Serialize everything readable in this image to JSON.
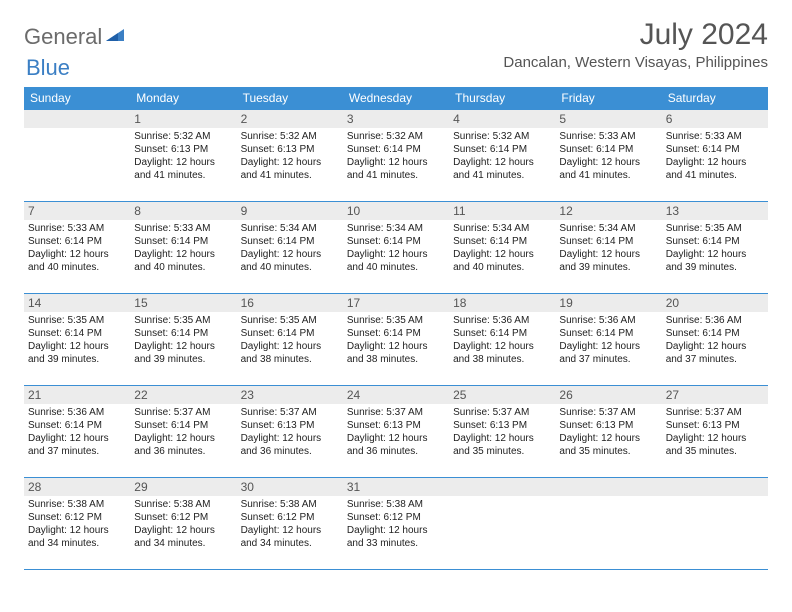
{
  "logo": {
    "text1": "General",
    "text2": "Blue"
  },
  "header": {
    "month": "July 2024",
    "location": "Dancalan, Western Visayas, Philippines"
  },
  "colors": {
    "header_bg": "#3b8fd4",
    "header_text": "#ffffff",
    "daynum_bg": "#ececec",
    "border": "#3b8fd4",
    "logo_gray": "#6b6b6b",
    "logo_blue": "#3b7fc4"
  },
  "weekdays": [
    "Sunday",
    "Monday",
    "Tuesday",
    "Wednesday",
    "Thursday",
    "Friday",
    "Saturday"
  ],
  "weeks": [
    [
      null,
      {
        "n": "1",
        "sr": "Sunrise: 5:32 AM",
        "ss": "Sunset: 6:13 PM",
        "d1": "Daylight: 12 hours",
        "d2": "and 41 minutes."
      },
      {
        "n": "2",
        "sr": "Sunrise: 5:32 AM",
        "ss": "Sunset: 6:13 PM",
        "d1": "Daylight: 12 hours",
        "d2": "and 41 minutes."
      },
      {
        "n": "3",
        "sr": "Sunrise: 5:32 AM",
        "ss": "Sunset: 6:14 PM",
        "d1": "Daylight: 12 hours",
        "d2": "and 41 minutes."
      },
      {
        "n": "4",
        "sr": "Sunrise: 5:32 AM",
        "ss": "Sunset: 6:14 PM",
        "d1": "Daylight: 12 hours",
        "d2": "and 41 minutes."
      },
      {
        "n": "5",
        "sr": "Sunrise: 5:33 AM",
        "ss": "Sunset: 6:14 PM",
        "d1": "Daylight: 12 hours",
        "d2": "and 41 minutes."
      },
      {
        "n": "6",
        "sr": "Sunrise: 5:33 AM",
        "ss": "Sunset: 6:14 PM",
        "d1": "Daylight: 12 hours",
        "d2": "and 41 minutes."
      }
    ],
    [
      {
        "n": "7",
        "sr": "Sunrise: 5:33 AM",
        "ss": "Sunset: 6:14 PM",
        "d1": "Daylight: 12 hours",
        "d2": "and 40 minutes."
      },
      {
        "n": "8",
        "sr": "Sunrise: 5:33 AM",
        "ss": "Sunset: 6:14 PM",
        "d1": "Daylight: 12 hours",
        "d2": "and 40 minutes."
      },
      {
        "n": "9",
        "sr": "Sunrise: 5:34 AM",
        "ss": "Sunset: 6:14 PM",
        "d1": "Daylight: 12 hours",
        "d2": "and 40 minutes."
      },
      {
        "n": "10",
        "sr": "Sunrise: 5:34 AM",
        "ss": "Sunset: 6:14 PM",
        "d1": "Daylight: 12 hours",
        "d2": "and 40 minutes."
      },
      {
        "n": "11",
        "sr": "Sunrise: 5:34 AM",
        "ss": "Sunset: 6:14 PM",
        "d1": "Daylight: 12 hours",
        "d2": "and 40 minutes."
      },
      {
        "n": "12",
        "sr": "Sunrise: 5:34 AM",
        "ss": "Sunset: 6:14 PM",
        "d1": "Daylight: 12 hours",
        "d2": "and 39 minutes."
      },
      {
        "n": "13",
        "sr": "Sunrise: 5:35 AM",
        "ss": "Sunset: 6:14 PM",
        "d1": "Daylight: 12 hours",
        "d2": "and 39 minutes."
      }
    ],
    [
      {
        "n": "14",
        "sr": "Sunrise: 5:35 AM",
        "ss": "Sunset: 6:14 PM",
        "d1": "Daylight: 12 hours",
        "d2": "and 39 minutes."
      },
      {
        "n": "15",
        "sr": "Sunrise: 5:35 AM",
        "ss": "Sunset: 6:14 PM",
        "d1": "Daylight: 12 hours",
        "d2": "and 39 minutes."
      },
      {
        "n": "16",
        "sr": "Sunrise: 5:35 AM",
        "ss": "Sunset: 6:14 PM",
        "d1": "Daylight: 12 hours",
        "d2": "and 38 minutes."
      },
      {
        "n": "17",
        "sr": "Sunrise: 5:35 AM",
        "ss": "Sunset: 6:14 PM",
        "d1": "Daylight: 12 hours",
        "d2": "and 38 minutes."
      },
      {
        "n": "18",
        "sr": "Sunrise: 5:36 AM",
        "ss": "Sunset: 6:14 PM",
        "d1": "Daylight: 12 hours",
        "d2": "and 38 minutes."
      },
      {
        "n": "19",
        "sr": "Sunrise: 5:36 AM",
        "ss": "Sunset: 6:14 PM",
        "d1": "Daylight: 12 hours",
        "d2": "and 37 minutes."
      },
      {
        "n": "20",
        "sr": "Sunrise: 5:36 AM",
        "ss": "Sunset: 6:14 PM",
        "d1": "Daylight: 12 hours",
        "d2": "and 37 minutes."
      }
    ],
    [
      {
        "n": "21",
        "sr": "Sunrise: 5:36 AM",
        "ss": "Sunset: 6:14 PM",
        "d1": "Daylight: 12 hours",
        "d2": "and 37 minutes."
      },
      {
        "n": "22",
        "sr": "Sunrise: 5:37 AM",
        "ss": "Sunset: 6:14 PM",
        "d1": "Daylight: 12 hours",
        "d2": "and 36 minutes."
      },
      {
        "n": "23",
        "sr": "Sunrise: 5:37 AM",
        "ss": "Sunset: 6:13 PM",
        "d1": "Daylight: 12 hours",
        "d2": "and 36 minutes."
      },
      {
        "n": "24",
        "sr": "Sunrise: 5:37 AM",
        "ss": "Sunset: 6:13 PM",
        "d1": "Daylight: 12 hours",
        "d2": "and 36 minutes."
      },
      {
        "n": "25",
        "sr": "Sunrise: 5:37 AM",
        "ss": "Sunset: 6:13 PM",
        "d1": "Daylight: 12 hours",
        "d2": "and 35 minutes."
      },
      {
        "n": "26",
        "sr": "Sunrise: 5:37 AM",
        "ss": "Sunset: 6:13 PM",
        "d1": "Daylight: 12 hours",
        "d2": "and 35 minutes."
      },
      {
        "n": "27",
        "sr": "Sunrise: 5:37 AM",
        "ss": "Sunset: 6:13 PM",
        "d1": "Daylight: 12 hours",
        "d2": "and 35 minutes."
      }
    ],
    [
      {
        "n": "28",
        "sr": "Sunrise: 5:38 AM",
        "ss": "Sunset: 6:12 PM",
        "d1": "Daylight: 12 hours",
        "d2": "and 34 minutes."
      },
      {
        "n": "29",
        "sr": "Sunrise: 5:38 AM",
        "ss": "Sunset: 6:12 PM",
        "d1": "Daylight: 12 hours",
        "d2": "and 34 minutes."
      },
      {
        "n": "30",
        "sr": "Sunrise: 5:38 AM",
        "ss": "Sunset: 6:12 PM",
        "d1": "Daylight: 12 hours",
        "d2": "and 34 minutes."
      },
      {
        "n": "31",
        "sr": "Sunrise: 5:38 AM",
        "ss": "Sunset: 6:12 PM",
        "d1": "Daylight: 12 hours",
        "d2": "and 33 minutes."
      },
      null,
      null,
      null
    ]
  ]
}
